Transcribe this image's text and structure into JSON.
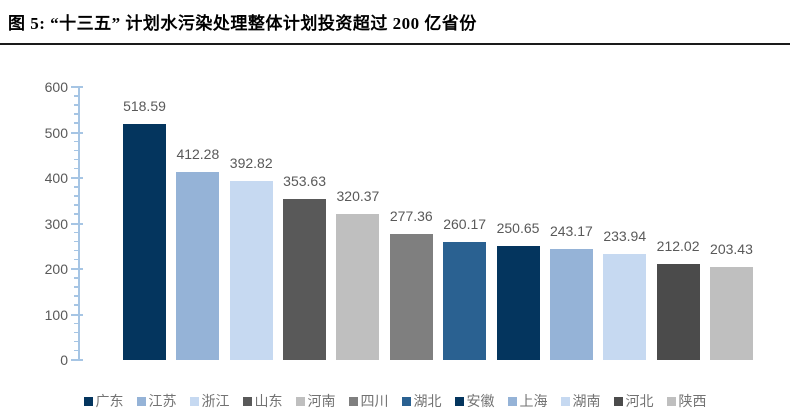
{
  "figure": {
    "title": "图 5: “十三五” 计划水污染处理整体计划投资超过 200 亿省份"
  },
  "chart_data": {
    "type": "bar",
    "title": "图 5: “十三五” 计划水污染处理整体计划投资超过 200 亿省份",
    "categories": [
      "广东",
      "江苏",
      "浙江",
      "山东",
      "河南",
      "四川",
      "湖北",
      "安徽",
      "上海",
      "湖南",
      "河北",
      "陕西"
    ],
    "values": [
      518.59,
      412.28,
      392.82,
      353.63,
      320.37,
      277.36,
      260.17,
      250.65,
      243.17,
      233.94,
      212.02,
      203.43
    ],
    "value_labels": [
      "518.59",
      "412.28",
      "392.82",
      "353.63",
      "320.37",
      "277.36",
      "260.17",
      "250.65",
      "243.17",
      "233.94",
      "212.02",
      "203.43"
    ],
    "bar_colors": [
      "#04355e",
      "#95b3d7",
      "#c6d9f1",
      "#595959",
      "#bfbfbf",
      "#7f7f7f",
      "#2a6191",
      "#04355e",
      "#95b3d7",
      "#c6d9f1",
      "#4b4b4b",
      "#bfbfbf"
    ],
    "xlabel": "",
    "ylabel": "",
    "ylim": [
      0,
      600
    ],
    "ytick_labels": [
      "0",
      "100",
      "200",
      "300",
      "400",
      "500",
      "600"
    ],
    "ytick_step": 100,
    "minor_tick_step": 20,
    "grid": false,
    "legend_position": "bottom",
    "colors": {
      "axis": "#a6c5e4",
      "data_label": "#595959",
      "tick_label": "#595959",
      "legend_text": "#737373",
      "title_rule": "#1a1a1a",
      "background": "#ffffff"
    }
  }
}
